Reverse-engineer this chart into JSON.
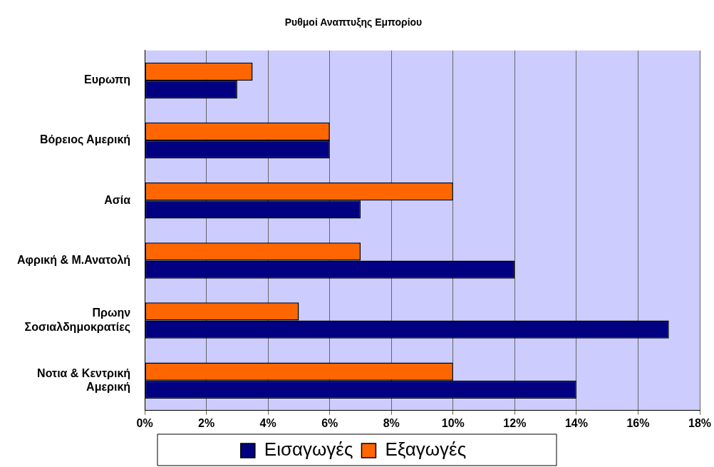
{
  "chart_data": {
    "type": "bar",
    "orientation": "horizontal",
    "title": "Ρυθμοί Αναπτυξης Εμπορίου",
    "categories": [
      "Ευρωπη",
      "Βόρειος Αμερική",
      "Ασία",
      "Αφρική & Μ.Ανατολή",
      "Πρωην Σοσιαλδημοκρατίες",
      "Νοτια & Κεντρική Αμερική"
    ],
    "series": [
      {
        "name": "Εισαγωγές",
        "color": "#000080",
        "values": [
          3,
          6,
          7,
          12,
          17,
          14
        ]
      },
      {
        "name": "Εξαγωγές",
        "color": "#ff6600",
        "values": [
          3.5,
          6,
          10,
          7,
          5,
          10
        ]
      }
    ],
    "xlim": [
      0,
      18
    ],
    "xticks": [
      {
        "value": 0,
        "label": "0%"
      },
      {
        "value": 2,
        "label": "2%"
      },
      {
        "value": 4,
        "label": "4%"
      },
      {
        "value": 6,
        "label": "6%"
      },
      {
        "value": 8,
        "label": "8%"
      },
      {
        "value": 10,
        "label": "10%"
      },
      {
        "value": 12,
        "label": "12%"
      },
      {
        "value": 14,
        "label": "14%"
      },
      {
        "value": 16,
        "label": "16%"
      },
      {
        "value": 18,
        "label": "18%"
      }
    ],
    "grid": "x",
    "legend": "bottom"
  }
}
